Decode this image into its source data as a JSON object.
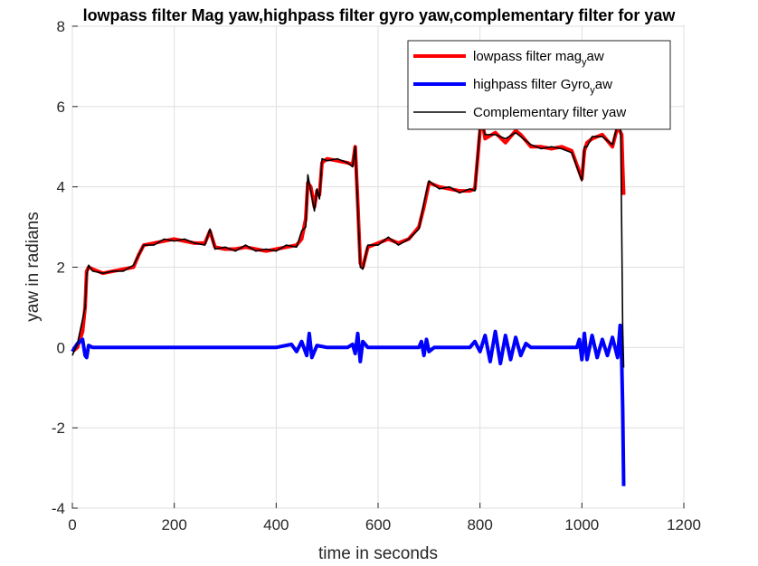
{
  "chart_data": {
    "type": "line",
    "title": "lowpass filter Mag yaw,highpass filter gyro yaw,complementary filter for yaw",
    "xlabel": "time in seconds",
    "ylabel": "yaw in radians",
    "xlim": [
      0,
      1200
    ],
    "ylim": [
      -4,
      8
    ],
    "xticks": [
      0,
      200,
      400,
      600,
      800,
      1000,
      1200
    ],
    "yticks": [
      -4,
      -2,
      0,
      2,
      4,
      6,
      8
    ],
    "xtick_labels": [
      "0",
      "200",
      "400",
      "600",
      "800",
      "1000",
      "1200"
    ],
    "ytick_labels": [
      "-4",
      "-2",
      "0",
      "2",
      "4",
      "6",
      "8"
    ],
    "grid": true,
    "legend_position": "top-right",
    "legend": [
      {
        "text_main": "lowpass filter mag",
        "text_sub": "y",
        "text_rest": "aw",
        "color": "#ff0000"
      },
      {
        "text_main": "highpass filter Gyro",
        "text_sub": "y",
        "text_rest": "aw",
        "color": "#0000ff"
      },
      {
        "text_main": "Complementary filter yaw",
        "text_sub": "",
        "text_rest": "",
        "color": "#000000"
      }
    ],
    "series": [
      {
        "color": "#ff0000",
        "line_width": 4,
        "x": [
          0,
          10,
          20,
          25,
          28,
          32,
          40,
          60,
          80,
          100,
          120,
          130,
          140,
          160,
          180,
          200,
          220,
          240,
          260,
          270,
          280,
          300,
          320,
          340,
          360,
          380,
          400,
          420,
          440,
          450,
          458,
          462,
          468,
          475,
          480,
          485,
          490,
          500,
          520,
          540,
          550,
          555,
          560,
          565,
          570,
          580,
          600,
          620,
          640,
          660,
          680,
          690,
          700,
          720,
          740,
          760,
          780,
          790,
          800,
          805,
          810,
          830,
          850,
          870,
          880,
          900,
          920,
          940,
          960,
          980,
          1000,
          1005,
          1010,
          1020,
          1040,
          1060,
          1070,
          1078,
          1080,
          1082
        ],
        "y": [
          -0.1,
          0.0,
          0.4,
          1.0,
          1.9,
          2.0,
          1.95,
          1.85,
          1.9,
          1.95,
          2.0,
          2.3,
          2.55,
          2.6,
          2.65,
          2.7,
          2.65,
          2.6,
          2.6,
          2.9,
          2.5,
          2.45,
          2.45,
          2.5,
          2.45,
          2.4,
          2.45,
          2.5,
          2.55,
          2.7,
          3.2,
          4.1,
          4.0,
          3.5,
          3.9,
          3.8,
          4.6,
          4.7,
          4.65,
          4.6,
          4.55,
          5.0,
          3.6,
          2.1,
          2.0,
          2.5,
          2.6,
          2.7,
          2.6,
          2.7,
          3.0,
          3.5,
          4.1,
          4.0,
          3.95,
          3.9,
          3.9,
          3.95,
          5.4,
          5.6,
          5.2,
          5.35,
          5.1,
          5.4,
          5.3,
          5.0,
          5.0,
          4.95,
          5.0,
          4.9,
          4.2,
          4.9,
          5.1,
          5.2,
          5.3,
          5.0,
          5.5,
          5.3,
          4.5,
          3.8
        ]
      },
      {
        "color": "#0000ff",
        "line_width": 4,
        "x": [
          0,
          5,
          10,
          20,
          25,
          28,
          32,
          40,
          60,
          100,
          200,
          300,
          400,
          430,
          440,
          450,
          460,
          465,
          470,
          480,
          500,
          540,
          550,
          555,
          560,
          565,
          570,
          580,
          600,
          680,
          685,
          690,
          695,
          700,
          710,
          780,
          790,
          800,
          810,
          820,
          830,
          840,
          850,
          860,
          870,
          880,
          890,
          900,
          990,
          995,
          1000,
          1005,
          1010,
          1020,
          1030,
          1040,
          1050,
          1060,
          1070,
          1075,
          1078,
          1080,
          1082
        ],
        "y": [
          -0.1,
          0.0,
          0.1,
          0.2,
          -0.2,
          -0.25,
          0.05,
          0.0,
          0.0,
          0.0,
          0.0,
          0.0,
          0.0,
          0.08,
          -0.1,
          0.15,
          -0.2,
          0.35,
          -0.25,
          0.05,
          0.0,
          0.0,
          0.08,
          -0.15,
          0.35,
          -0.35,
          0.15,
          0.0,
          0.0,
          0.0,
          0.15,
          -0.2,
          0.2,
          -0.1,
          0.0,
          0.0,
          0.15,
          -0.1,
          0.3,
          -0.35,
          0.4,
          -0.4,
          0.3,
          -0.3,
          0.25,
          -0.2,
          0.1,
          0.0,
          0.0,
          0.2,
          -0.3,
          0.35,
          -0.3,
          0.3,
          -0.25,
          0.2,
          -0.2,
          0.25,
          -0.25,
          0.55,
          -0.3,
          -1.5,
          -3.45
        ]
      },
      {
        "color": "#000000",
        "line_width": 1.6,
        "x": [
          0,
          10,
          20,
          25,
          28,
          32,
          40,
          60,
          80,
          100,
          120,
          130,
          140,
          160,
          180,
          200,
          220,
          240,
          260,
          270,
          280,
          300,
          320,
          340,
          360,
          380,
          400,
          420,
          440,
          450,
          458,
          462,
          468,
          475,
          480,
          485,
          490,
          500,
          520,
          540,
          550,
          555,
          560,
          565,
          570,
          580,
          600,
          620,
          640,
          660,
          680,
          690,
          700,
          720,
          740,
          760,
          780,
          790,
          800,
          805,
          810,
          830,
          850,
          870,
          880,
          900,
          920,
          940,
          960,
          980,
          1000,
          1005,
          1010,
          1020,
          1040,
          1060,
          1070,
          1076,
          1078,
          1080,
          1082
        ],
        "y": [
          -0.2,
          0.1,
          0.7,
          1.0,
          1.8,
          2.05,
          1.9,
          1.85,
          1.9,
          1.9,
          2.05,
          2.3,
          2.55,
          2.55,
          2.7,
          2.65,
          2.7,
          2.6,
          2.55,
          2.95,
          2.45,
          2.5,
          2.4,
          2.55,
          2.4,
          2.45,
          2.4,
          2.55,
          2.5,
          2.9,
          3.0,
          4.3,
          3.9,
          3.4,
          3.95,
          3.7,
          4.7,
          4.65,
          4.7,
          4.6,
          4.5,
          5.0,
          3.5,
          2.0,
          1.95,
          2.55,
          2.55,
          2.75,
          2.55,
          2.7,
          2.95,
          3.6,
          4.15,
          3.95,
          4.0,
          3.85,
          3.95,
          3.9,
          5.5,
          5.5,
          5.3,
          5.3,
          5.2,
          5.35,
          5.25,
          5.05,
          4.95,
          5.0,
          4.95,
          4.85,
          4.15,
          5.0,
          5.0,
          5.25,
          5.25,
          5.05,
          5.55,
          5.5,
          3.0,
          0.5,
          -0.5
        ]
      }
    ]
  }
}
